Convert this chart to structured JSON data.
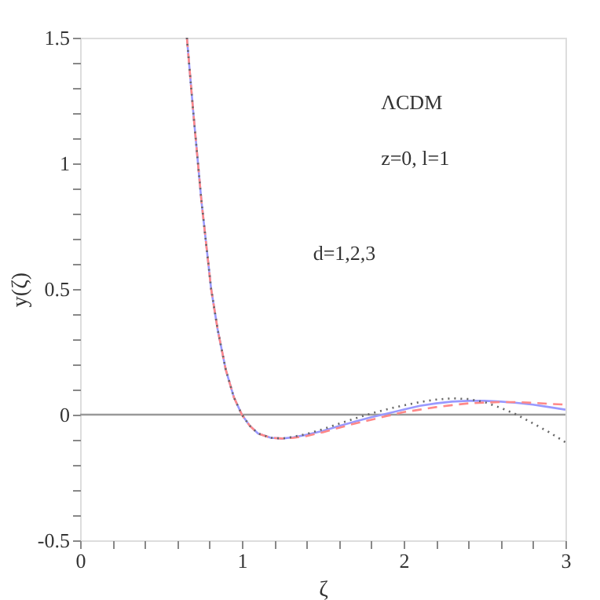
{
  "chart_data": {
    "type": "line",
    "xlabel": "ζ",
    "ylabel": "y(ζ)",
    "annotations": [
      "ΛCDM",
      "z=0,  l=1",
      "d=1,2,3"
    ],
    "xlim": [
      0,
      3
    ],
    "ylim": [
      -0.5,
      1.5
    ],
    "xticks": [
      0,
      {
        "value": 0.2,
        "label": null
      },
      {
        "value": 0.4,
        "label": null
      },
      {
        "value": 0.6,
        "label": null
      },
      {
        "value": 0.8,
        "label": null
      },
      1,
      {
        "value": 1.2,
        "label": null
      },
      {
        "value": 1.4,
        "label": null
      },
      {
        "value": 1.6,
        "label": null
      },
      {
        "value": 1.8,
        "label": null
      },
      2,
      {
        "value": 2.2,
        "label": null
      },
      {
        "value": 2.4,
        "label": null
      },
      {
        "value": 2.6,
        "label": null
      },
      {
        "value": 2.8,
        "label": null
      },
      3
    ],
    "yticks": [
      -0.5,
      {
        "value": -0.4,
        "label": null
      },
      {
        "value": -0.3,
        "label": null
      },
      {
        "value": -0.2,
        "label": null
      },
      {
        "value": -0.1,
        "label": null
      },
      0,
      {
        "value": 0.1,
        "label": null
      },
      {
        "value": 0.2,
        "label": null
      },
      {
        "value": 0.3,
        "label": null
      },
      {
        "value": 0.4,
        "label": null
      },
      0.5,
      {
        "value": 0.6,
        "label": null
      },
      {
        "value": 0.7,
        "label": null
      },
      {
        "value": 0.8,
        "label": null
      },
      {
        "value": 0.9,
        "label": null
      },
      1,
      {
        "value": 1.1,
        "label": null
      },
      {
        "value": 1.2,
        "label": null
      },
      {
        "value": 1.3,
        "label": null
      },
      {
        "value": 1.4,
        "label": null
      },
      1.5
    ],
    "ref_lines": [
      {
        "axis": "y",
        "value": 0,
        "color": "#999999",
        "line_style": "solid"
      }
    ],
    "grid": false,
    "marker": "none",
    "series": [
      {
        "color": "#9999ff",
        "line_style": "solid",
        "x": [
          0.66,
          0.7,
          0.75,
          0.81,
          0.85,
          0.9,
          0.95,
          1.0,
          1.05,
          1.1,
          1.18,
          1.25,
          1.32,
          1.4,
          1.5,
          1.6,
          1.7,
          1.8,
          1.9,
          2.0,
          2.1,
          2.2,
          2.3,
          2.4,
          2.5,
          2.6,
          2.7,
          2.8,
          2.9,
          3.0
        ],
        "values": [
          1.5,
          1.2,
          0.85,
          0.5,
          0.34,
          0.18,
          0.07,
          0.0,
          -0.045,
          -0.075,
          -0.092,
          -0.095,
          -0.09,
          -0.08,
          -0.065,
          -0.045,
          -0.027,
          -0.01,
          0.005,
          0.02,
          0.035,
          0.045,
          0.052,
          0.055,
          0.055,
          0.052,
          0.047,
          0.04,
          0.03,
          0.02
        ]
      },
      {
        "color": "#ff8888",
        "line_style": "dashed",
        "x": [
          0.66,
          0.7,
          0.75,
          0.81,
          0.85,
          0.9,
          0.95,
          1.0,
          1.05,
          1.1,
          1.18,
          1.25,
          1.32,
          1.4,
          1.5,
          1.6,
          1.7,
          1.8,
          1.9,
          2.0,
          2.1,
          2.2,
          2.3,
          2.4,
          2.5,
          2.6,
          2.7,
          2.8,
          2.9,
          3.0
        ],
        "values": [
          1.5,
          1.2,
          0.85,
          0.5,
          0.34,
          0.18,
          0.07,
          0.0,
          -0.045,
          -0.075,
          -0.092,
          -0.095,
          -0.092,
          -0.085,
          -0.07,
          -0.052,
          -0.035,
          -0.02,
          -0.005,
          0.01,
          0.02,
          0.03,
          0.038,
          0.045,
          0.048,
          0.05,
          0.05,
          0.047,
          0.043,
          0.04
        ]
      },
      {
        "color": "#666666",
        "line_style": "dotted",
        "x": [
          0.66,
          0.7,
          0.75,
          0.81,
          0.85,
          0.9,
          0.95,
          1.0,
          1.05,
          1.1,
          1.18,
          1.25,
          1.32,
          1.4,
          1.5,
          1.6,
          1.7,
          1.8,
          1.9,
          2.0,
          2.1,
          2.2,
          2.3,
          2.4,
          2.5,
          2.6,
          2.7,
          2.8,
          2.9,
          3.0
        ],
        "values": [
          1.5,
          1.2,
          0.85,
          0.5,
          0.34,
          0.18,
          0.07,
          0.0,
          -0.045,
          -0.075,
          -0.092,
          -0.095,
          -0.088,
          -0.077,
          -0.058,
          -0.036,
          -0.015,
          0.005,
          0.022,
          0.037,
          0.05,
          0.06,
          0.065,
          0.062,
          0.05,
          0.027,
          0.0,
          -0.035,
          -0.07,
          -0.11
        ]
      }
    ]
  }
}
